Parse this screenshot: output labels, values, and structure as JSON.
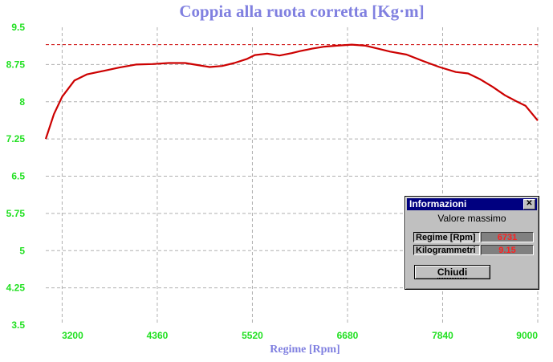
{
  "chart_data": {
    "type": "line",
    "title": "Coppia alla ruota corretta [Kg·m]",
    "xlabel": "Regime [Rpm]",
    "ylabel": "",
    "xlim": [
      3000,
      9000
    ],
    "ylim": [
      3.5,
      9.5
    ],
    "x_ticks": [
      "3200",
      "4360",
      "5520",
      "6680",
      "7840",
      "9000"
    ],
    "y_ticks": [
      "9.5",
      "8.75",
      "8",
      "7.25",
      "6.5",
      "5.75",
      "5",
      "4.25",
      "3.5"
    ],
    "grid": true,
    "max_line": 9.15,
    "series": [
      {
        "color": "#cc0000",
        "x": [
          3000,
          3100,
          3200,
          3350,
          3500,
          3700,
          3900,
          4100,
          4300,
          4500,
          4700,
          4850,
          5000,
          5150,
          5300,
          5450,
          5550,
          5700,
          5850,
          6000,
          6100,
          6250,
          6400,
          6550,
          6731,
          6900,
          7050,
          7200,
          7400,
          7600,
          7800,
          8000,
          8150,
          8300,
          8450,
          8600,
          8750,
          8850,
          9000
        ],
        "y": [
          7.25,
          7.75,
          8.1,
          8.43,
          8.55,
          8.62,
          8.69,
          8.75,
          8.76,
          8.78,
          8.78,
          8.74,
          8.7,
          8.72,
          8.78,
          8.86,
          8.94,
          8.97,
          8.93,
          8.98,
          9.02,
          9.07,
          9.11,
          9.13,
          9.15,
          9.13,
          9.07,
          9.01,
          8.95,
          8.82,
          8.7,
          8.6,
          8.57,
          8.45,
          8.3,
          8.13,
          8.0,
          7.92,
          7.62
        ]
      }
    ]
  },
  "dialog": {
    "title": "Informazioni",
    "close_glyph": "✕",
    "subtitle": "Valore massimo",
    "rows": [
      {
        "label": "Regime [Rpm]",
        "value": "6731"
      },
      {
        "label": "Kilogrammetri",
        "value": "9.15"
      }
    ],
    "button_label": "Chiudi"
  },
  "colors": {
    "title": "#8080e0",
    "ticks": "#22e022",
    "line": "#cc0000",
    "max_line": "#cc0000",
    "grid": "#b0b0b0"
  }
}
